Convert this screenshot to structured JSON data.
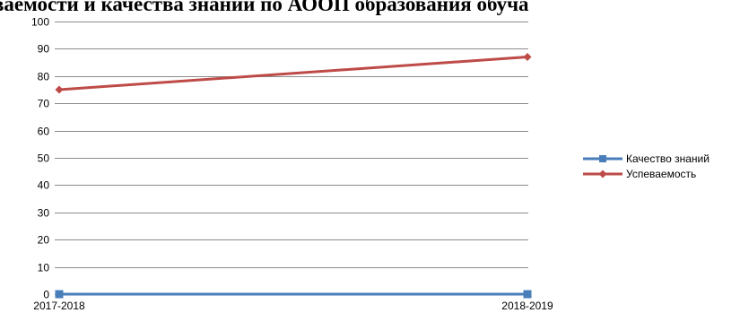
{
  "header": {
    "title": "ваемости и качества знаний по АООП образования обуча"
  },
  "chart_data": {
    "type": "line",
    "title": "",
    "xlabel": "",
    "ylabel": "",
    "categories": [
      "2017-2018",
      "2018-2019"
    ],
    "ylim": [
      0,
      100
    ],
    "yticks": [
      0,
      10,
      20,
      30,
      40,
      50,
      60,
      70,
      80,
      90,
      100
    ],
    "grid": true,
    "legend_position": "right",
    "series": [
      {
        "name": "Качество знаний",
        "values": [
          0,
          0
        ],
        "color": "#4a7ebb",
        "marker": "square"
      },
      {
        "name": "Успеваемость",
        "values": [
          75,
          87
        ],
        "color": "#be4b48",
        "marker": "diamond"
      }
    ]
  }
}
